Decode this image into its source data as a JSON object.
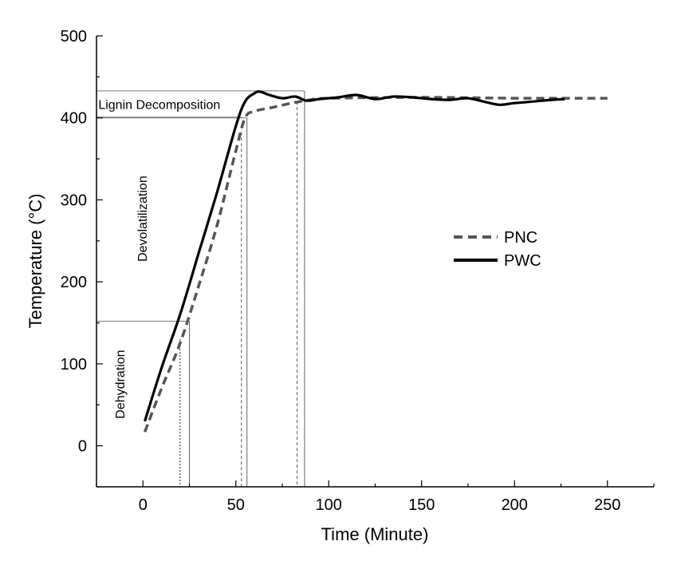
{
  "chart_data": {
    "type": "line",
    "title": "",
    "xlabel": "Time (Minute)",
    "ylabel": "Temperature (°C)",
    "xlim": [
      -25,
      275
    ],
    "ylim": [
      -50,
      500
    ],
    "xticks": [
      0,
      50,
      100,
      150,
      200,
      250
    ],
    "yticks": [
      0,
      100,
      200,
      300,
      400,
      500
    ],
    "grid": false,
    "legend_position": "right-center",
    "series": [
      {
        "name": "PNC",
        "style": "dashed",
        "color": "#555555",
        "x": [
          1,
          10,
          20,
          30,
          40,
          50,
          55,
          60,
          70,
          80,
          90,
          100,
          150,
          200,
          250
        ],
        "y": [
          17,
          70,
          125,
          195,
          270,
          360,
          400,
          408,
          413,
          418,
          422,
          424,
          425,
          424,
          424
        ]
      },
      {
        "name": "PWC",
        "style": "solid",
        "color": "#000000",
        "x": [
          1,
          10,
          20,
          30,
          40,
          50,
          55,
          60,
          63,
          68,
          75,
          82,
          88,
          95,
          105,
          115,
          125,
          135,
          145,
          155,
          165,
          175,
          185,
          192,
          200,
          210,
          220,
          227
        ],
        "y": [
          30,
          95,
          160,
          235,
          310,
          390,
          420,
          430,
          432,
          428,
          424,
          426,
          421,
          423,
          425,
          428,
          423,
          426,
          425,
          423,
          422,
          424,
          419,
          416,
          418,
          420,
          422,
          423
        ]
      }
    ],
    "regions": [
      {
        "label": "Dehydration",
        "x_end": 25,
        "y_top": 152,
        "orientation": "vertical",
        "label_x": -10,
        "label_y": 75
      },
      {
        "label": "Devolatilization",
        "x_end": 56,
        "y_top": 400,
        "orientation": "vertical",
        "label_x": 2,
        "label_y": 277
      },
      {
        "label": "Lignin Decomposition",
        "x_end": 87,
        "y_top": 433,
        "y_bottom": 401,
        "orientation": "horizontal",
        "label_x": -24,
        "label_y": 417
      }
    ],
    "reference_lines": [
      {
        "x": 20,
        "style": "dotted",
        "y_top": 130
      },
      {
        "x": 25,
        "style": "solid",
        "y_top": 152
      },
      {
        "x": 53,
        "style": "dashed",
        "y_top": 383
      },
      {
        "x": 56,
        "style": "solid",
        "y_top": 400
      },
      {
        "x": 83,
        "style": "dashed",
        "y_top": 420
      },
      {
        "x": 87,
        "style": "solid",
        "y_top": 433
      }
    ]
  }
}
